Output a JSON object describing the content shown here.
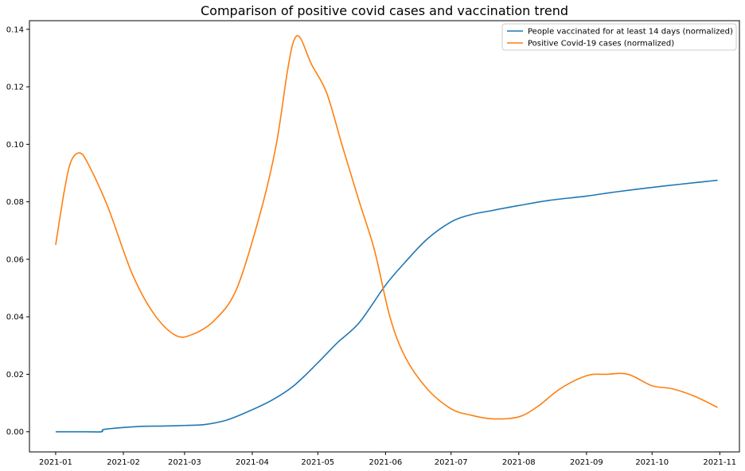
{
  "chart_data": {
    "type": "line",
    "title": "Comparison of positive covid cases and vaccination trend",
    "xlabel": "",
    "ylabel": "",
    "xlim": [
      "2020-12-20",
      "2021-11-10"
    ],
    "ylim": [
      -0.007,
      0.143
    ],
    "x_ticks": [
      "2021-01",
      "2021-02",
      "2021-03",
      "2021-04",
      "2021-05",
      "2021-06",
      "2021-07",
      "2021-08",
      "2021-09",
      "2021-10",
      "2021-11"
    ],
    "y_ticks": [
      "0.00",
      "0.02",
      "0.04",
      "0.06",
      "0.08",
      "0.10",
      "0.12",
      "0.14"
    ],
    "y_tick_values": [
      0.0,
      0.02,
      0.04,
      0.06,
      0.08,
      0.1,
      0.12,
      0.14
    ],
    "grid": false,
    "legend_position": "top-right",
    "series": [
      {
        "name": "People vaccinated for at least 14 days (normalized)",
        "color": "#1f77b4",
        "points": [
          [
            "2021-01-01",
            0.0
          ],
          [
            "2021-01-15",
            0.0
          ],
          [
            "2021-01-22",
            0.0
          ],
          [
            "2021-01-23",
            0.0008
          ],
          [
            "2021-02-01",
            0.0015
          ],
          [
            "2021-02-10",
            0.0019
          ],
          [
            "2021-02-20",
            0.002
          ],
          [
            "2021-03-01",
            0.0022
          ],
          [
            "2021-03-10",
            0.0025
          ],
          [
            "2021-03-20",
            0.004
          ],
          [
            "2021-03-30",
            0.007
          ],
          [
            "2021-04-10",
            0.011
          ],
          [
            "2021-04-20",
            0.016
          ],
          [
            "2021-05-01",
            0.024
          ],
          [
            "2021-05-10",
            0.031
          ],
          [
            "2021-05-20",
            0.038
          ],
          [
            "2021-06-01",
            0.051
          ],
          [
            "2021-06-10",
            0.059
          ],
          [
            "2021-06-20",
            0.067
          ],
          [
            "2021-07-01",
            0.073
          ],
          [
            "2021-07-10",
            0.0755
          ],
          [
            "2021-07-20",
            0.077
          ],
          [
            "2021-08-01",
            0.0787
          ],
          [
            "2021-08-15",
            0.0805
          ],
          [
            "2021-09-01",
            0.082
          ],
          [
            "2021-09-15",
            0.0835
          ],
          [
            "2021-10-01",
            0.085
          ],
          [
            "2021-10-15",
            0.0862
          ],
          [
            "2021-10-31",
            0.0875
          ]
        ]
      },
      {
        "name": "Positive Covid-19 cases (normalized)",
        "color": "#ff7f0e",
        "points": [
          [
            "2021-01-01",
            0.065
          ],
          [
            "2021-01-05",
            0.084
          ],
          [
            "2021-01-08",
            0.094
          ],
          [
            "2021-01-12",
            0.097
          ],
          [
            "2021-01-16",
            0.093
          ],
          [
            "2021-01-25",
            0.078
          ],
          [
            "2021-02-05",
            0.055
          ],
          [
            "2021-02-15",
            0.041
          ],
          [
            "2021-02-25",
            0.0335
          ],
          [
            "2021-03-05",
            0.034
          ],
          [
            "2021-03-15",
            0.039
          ],
          [
            "2021-03-25",
            0.05
          ],
          [
            "2021-04-05",
            0.077
          ],
          [
            "2021-04-12",
            0.1
          ],
          [
            "2021-04-17",
            0.125
          ],
          [
            "2021-04-20",
            0.136
          ],
          [
            "2021-04-23",
            0.137
          ],
          [
            "2021-04-28",
            0.128
          ],
          [
            "2021-05-05",
            0.118
          ],
          [
            "2021-05-12",
            0.1
          ],
          [
            "2021-05-20",
            0.08
          ],
          [
            "2021-05-27",
            0.063
          ],
          [
            "2021-06-03",
            0.04
          ],
          [
            "2021-06-10",
            0.026
          ],
          [
            "2021-06-20",
            0.015
          ],
          [
            "2021-07-01",
            0.008
          ],
          [
            "2021-07-10",
            0.0058
          ],
          [
            "2021-07-20",
            0.0045
          ],
          [
            "2021-08-01",
            0.0052
          ],
          [
            "2021-08-10",
            0.009
          ],
          [
            "2021-08-20",
            0.015
          ],
          [
            "2021-09-01",
            0.0195
          ],
          [
            "2021-09-10",
            0.02
          ],
          [
            "2021-09-20",
            0.02
          ],
          [
            "2021-10-01",
            0.016
          ],
          [
            "2021-10-10",
            0.015
          ],
          [
            "2021-10-20",
            0.0125
          ],
          [
            "2021-10-31",
            0.0085
          ]
        ]
      }
    ]
  }
}
